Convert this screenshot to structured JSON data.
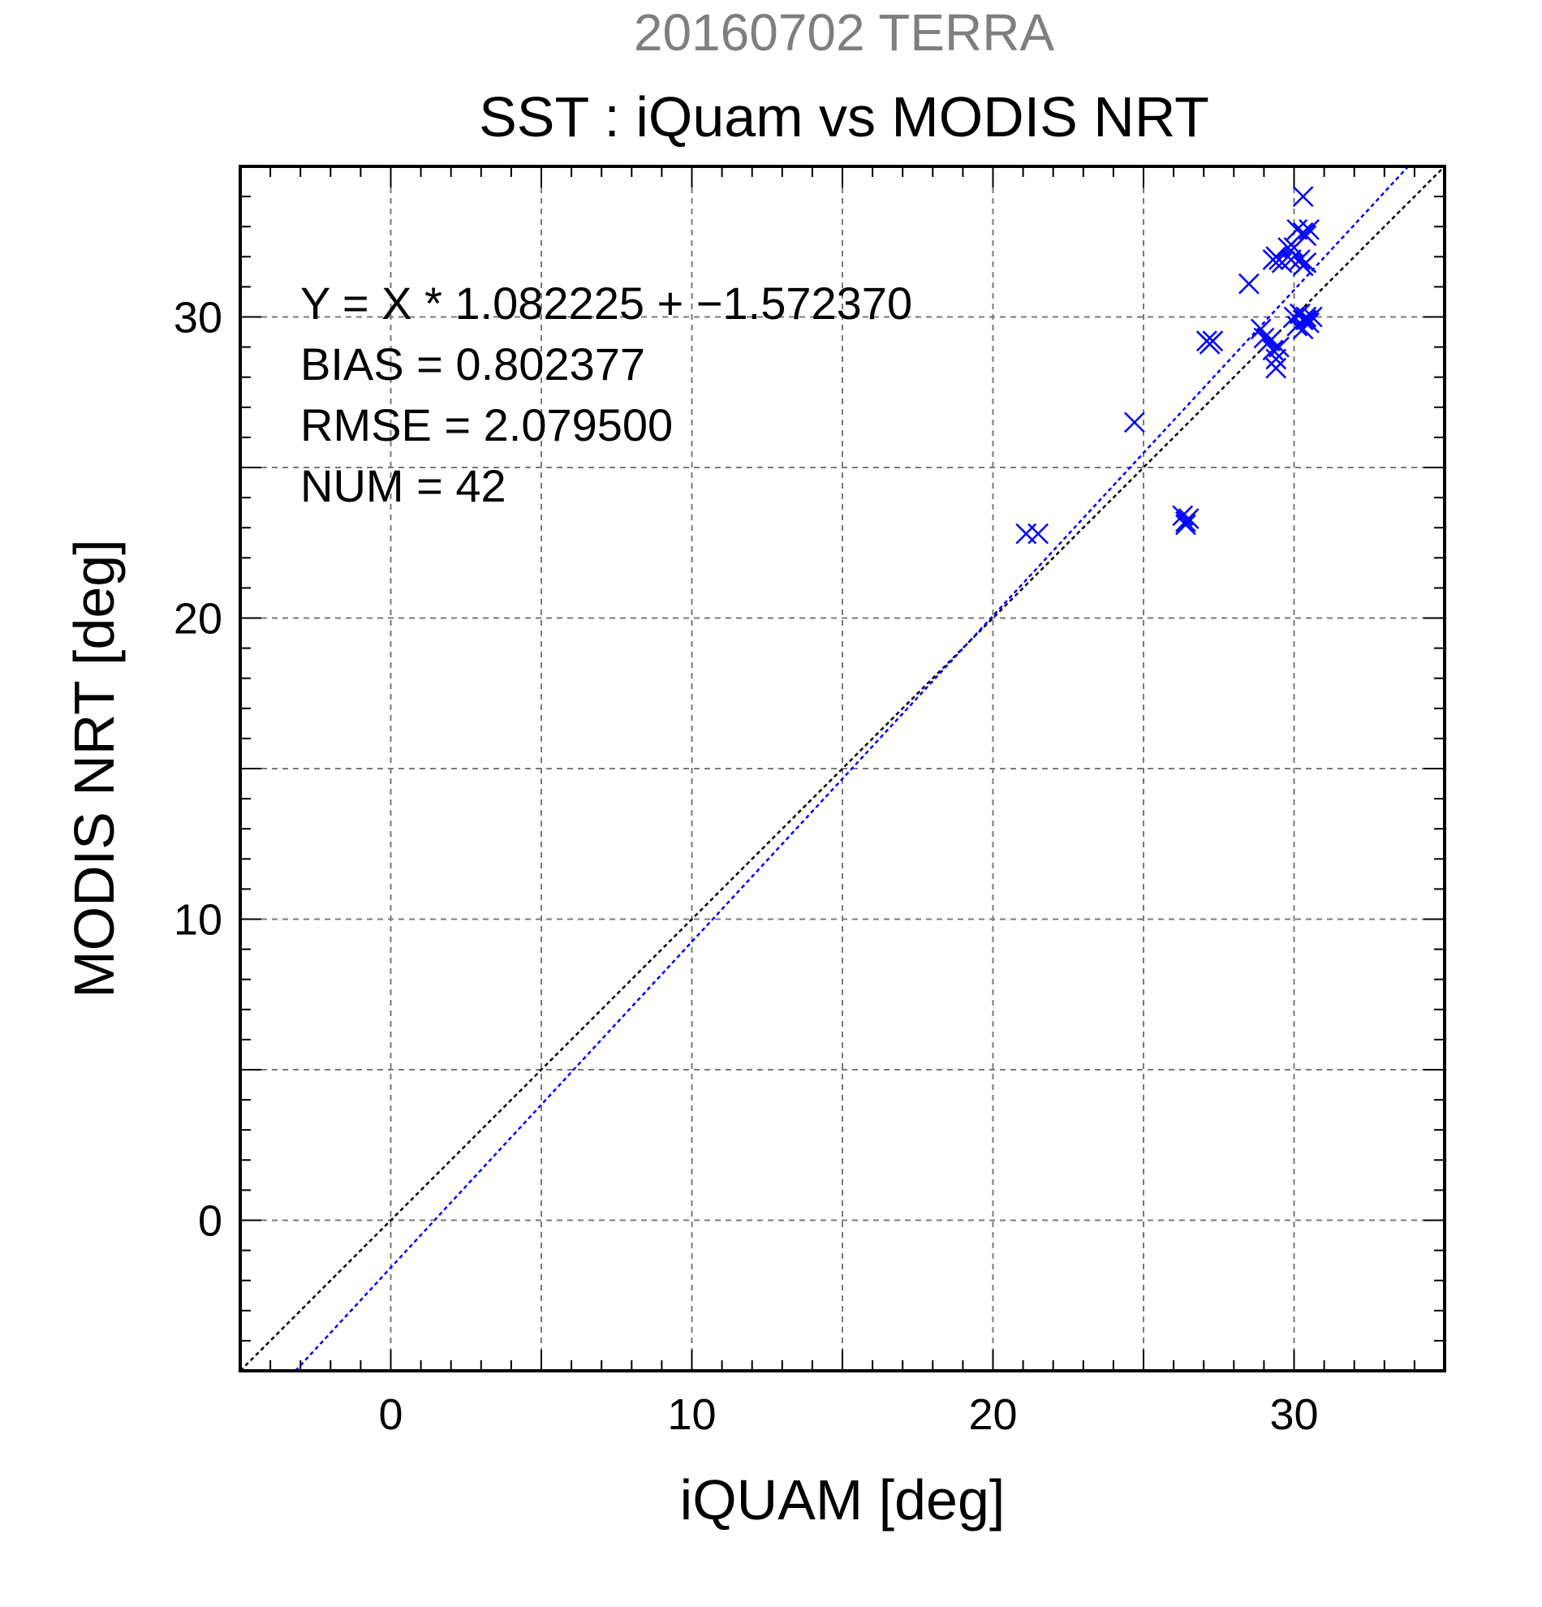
{
  "chart_data": {
    "type": "scatter",
    "supertitle": "20160702 TERRA",
    "title": "SST : iQuam vs MODIS NRT",
    "xlabel": "iQUAM [deg]",
    "ylabel": "MODIS NRT [deg]",
    "xlim": [
      -5,
      35
    ],
    "ylim": [
      -5,
      35
    ],
    "xticks": [
      0,
      10,
      20,
      30
    ],
    "yticks": [
      0,
      10,
      20,
      30
    ],
    "xtick_labels": [
      "0",
      "10",
      "20",
      "30"
    ],
    "ytick_labels": [
      "0",
      "10",
      "20",
      "30"
    ],
    "minor_tick_step": 1,
    "grid_step": 5,
    "grid": true,
    "stats": [
      "Y = X * 1.082225 + −1.572370",
      "BIAS = 0.802377",
      "RMSE = 2.079500",
      "NUM = 42"
    ],
    "fit": {
      "slope": 1.082225,
      "intercept": -1.57237
    },
    "colors": {
      "points": "#0000ff",
      "fit_line": "#0000ff",
      "identity_line": "#000000",
      "grid": "#7a7a7a",
      "supertitle": "#7f7f7f"
    },
    "series": [
      {
        "marker": "x",
        "points": [
          [
            21.1,
            22.8
          ],
          [
            21.5,
            22.8
          ],
          [
            24.7,
            26.5
          ],
          [
            26.3,
            23.4
          ],
          [
            26.4,
            23.2
          ],
          [
            26.5,
            23.3
          ],
          [
            26.4,
            23.1
          ],
          [
            27.1,
            29.2
          ],
          [
            27.3,
            29.2
          ],
          [
            27.2,
            29.1
          ],
          [
            28.5,
            31.1
          ],
          [
            28.9,
            29.6
          ],
          [
            29.0,
            29.3
          ],
          [
            29.2,
            29.2
          ],
          [
            29.3,
            28.9
          ],
          [
            29.4,
            28.6
          ],
          [
            29.4,
            28.3
          ],
          [
            29.5,
            29.0
          ],
          [
            29.3,
            31.9
          ],
          [
            29.5,
            31.9
          ],
          [
            29.4,
            32.0
          ],
          [
            29.6,
            31.8
          ],
          [
            29.8,
            32.3
          ],
          [
            30.0,
            32.3
          ],
          [
            29.9,
            31.9
          ],
          [
            30.1,
            32.9
          ],
          [
            30.3,
            32.8
          ],
          [
            30.5,
            32.9
          ],
          [
            30.4,
            32.7
          ],
          [
            30.2,
            31.9
          ],
          [
            30.4,
            31.8
          ],
          [
            30.3,
            31.7
          ],
          [
            30.3,
            34.0
          ],
          [
            30.0,
            30.0
          ],
          [
            30.1,
            29.7
          ],
          [
            30.2,
            30.1
          ],
          [
            30.3,
            29.9
          ],
          [
            30.4,
            30.0
          ],
          [
            30.5,
            29.8
          ],
          [
            30.3,
            29.6
          ],
          [
            30.4,
            29.9
          ],
          [
            30.6,
            30.0
          ]
        ]
      }
    ]
  }
}
